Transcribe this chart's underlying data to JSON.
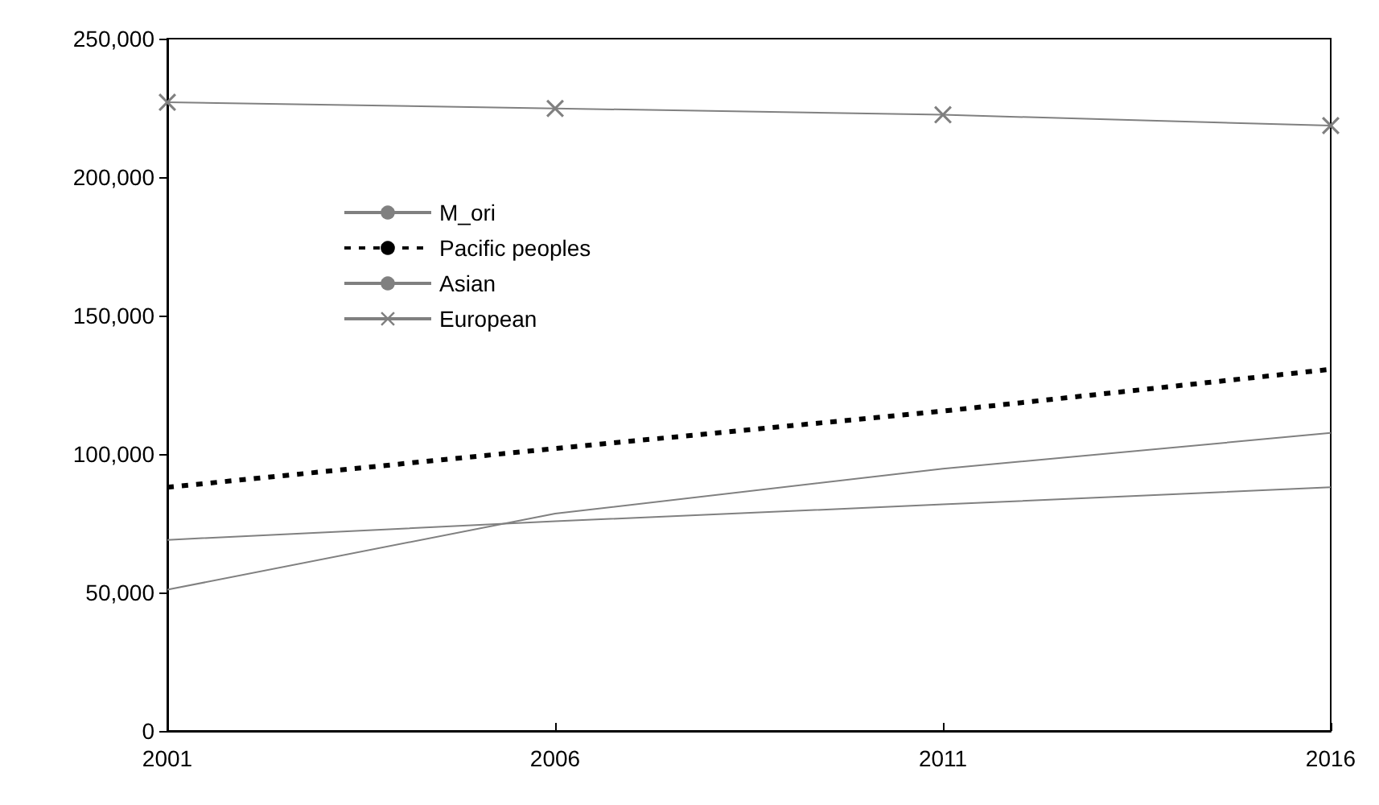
{
  "chart_data": {
    "type": "line",
    "x": [
      2001,
      2006,
      2011,
      2016
    ],
    "series": [
      {
        "name": "M_ori",
        "color": "#808080",
        "line_style": "solid",
        "marker": "none",
        "values": [
          69000,
          75700,
          81800,
          88000
        ]
      },
      {
        "name": "Pacific peoples",
        "color": "#000000",
        "line_style": "dashed",
        "marker": "none",
        "values": [
          88000,
          102000,
          115500,
          130600
        ]
      },
      {
        "name": "Asian",
        "color": "#808080",
        "line_style": "solid",
        "marker": "none",
        "values": [
          51000,
          78500,
          94700,
          107600
        ]
      },
      {
        "name": "European",
        "color": "#808080",
        "line_style": "solid",
        "marker": "cross",
        "values": [
          227000,
          224800,
          222500,
          218600
        ]
      }
    ],
    "xlim": [
      2001,
      2016
    ],
    "xticks": [
      2001,
      2006,
      2011,
      2016
    ],
    "ylim": [
      0,
      250000
    ],
    "yticks": [
      0,
      {
        "value": 50000,
        "label": "50,000"
      },
      {
        "value": 100000,
        "label": "100,000"
      },
      {
        "value": 150000,
        "label": "150,000"
      },
      {
        "value": 200000,
        "label": "200,000"
      },
      {
        "value": 250000,
        "label": "250,000"
      }
    ],
    "grid": false,
    "legend": "top left"
  }
}
